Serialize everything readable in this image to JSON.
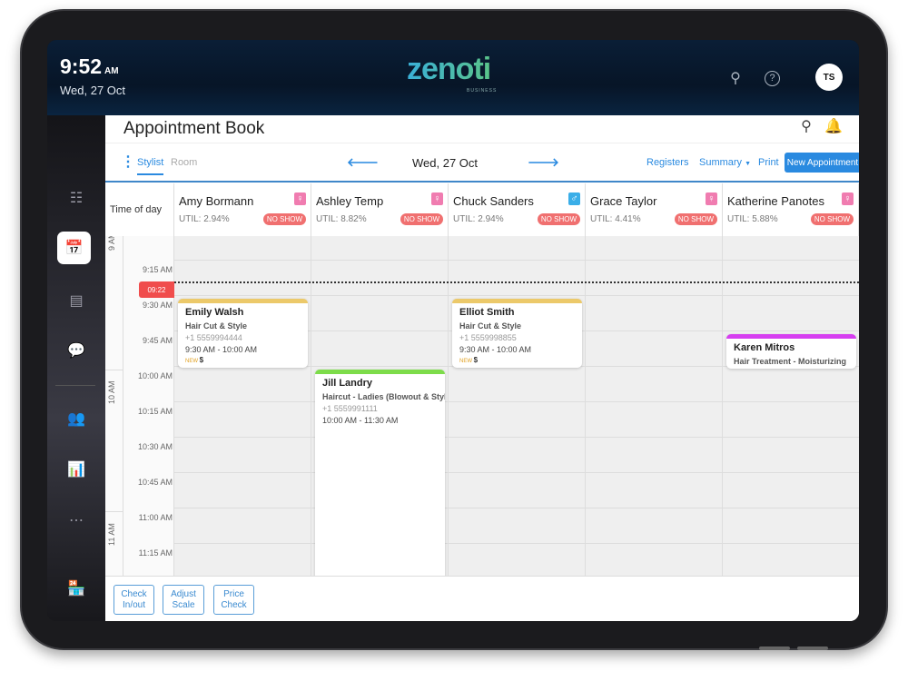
{
  "status": {
    "time": "9:52",
    "ampm": "AM",
    "date": "Wed, 27 Oct"
  },
  "brand": {
    "logo": "zenoti",
    "sub": "BUSINESS"
  },
  "user": {
    "initials": "TS"
  },
  "page": {
    "title": "Appointment Book"
  },
  "toolbar": {
    "tabs": [
      "Stylist",
      "Room"
    ],
    "date": "Wed, 27 Oct",
    "registers": "Registers",
    "summary": "Summary",
    "print": "Print",
    "new_appointment": "New Appointment"
  },
  "time_header": "Time of day",
  "stylists": [
    {
      "name": "Amy Bormann",
      "util": "UTIL: 2.94%",
      "gender": "female",
      "badge": "NO SHOW"
    },
    {
      "name": "Ashley Temp",
      "util": "UTIL: 8.82%",
      "gender": "female",
      "badge": "NO SHOW"
    },
    {
      "name": "Chuck Sanders",
      "util": "UTIL: 2.94%",
      "gender": "male",
      "badge": "NO SHOW"
    },
    {
      "name": "Grace Taylor",
      "util": "UTIL: 4.41%",
      "gender": "female",
      "badge": "NO SHOW"
    },
    {
      "name": "Katherine Panotes",
      "util": "UTIL: 5.88%",
      "gender": "female",
      "badge": "NO SHOW"
    }
  ],
  "hours": [
    "9 AM",
    "10 AM",
    "11 AM"
  ],
  "slots": [
    "9:15 AM",
    "9:30 AM",
    "9:45 AM",
    "10:00 AM",
    "10:15 AM",
    "10:30 AM",
    "10:45 AM",
    "11:00 AM",
    "11:15 AM"
  ],
  "current_time": "09:22",
  "appointments": [
    {
      "client": "Emily Walsh",
      "service": "Hair Cut & Style",
      "phone": "+1 5559994444",
      "time": "9:30 AM - 10:00 AM",
      "badge": "NEW",
      "price": "$",
      "color": "#ecc96a"
    },
    {
      "client": "Elliot Smith",
      "service": "Hair Cut & Style",
      "phone": "+1 5559998855",
      "time": "9:30 AM - 10:00 AM",
      "badge": "NEW",
      "price": "$",
      "color": "#ecc96a"
    },
    {
      "client": "Jill Landry",
      "service": "Haircut - Ladies (Blowout & Style",
      "phone": "+1 5559991111",
      "time": "10:00 AM - 11:30 AM",
      "color": "#7ddc4a"
    },
    {
      "client": "Karen Mitros",
      "service": "Hair Treatment - Moisturizing",
      "color": "#d63ef0"
    }
  ],
  "footer": {
    "check": "Check In/out",
    "adjust": "Adjust Scale",
    "price": "Price Check"
  },
  "colors": {
    "accent": "#2a8ae0",
    "female": "#f07cb0",
    "male": "#3aaee8",
    "noshow": "#f07070",
    "now": "#f04d4d"
  }
}
